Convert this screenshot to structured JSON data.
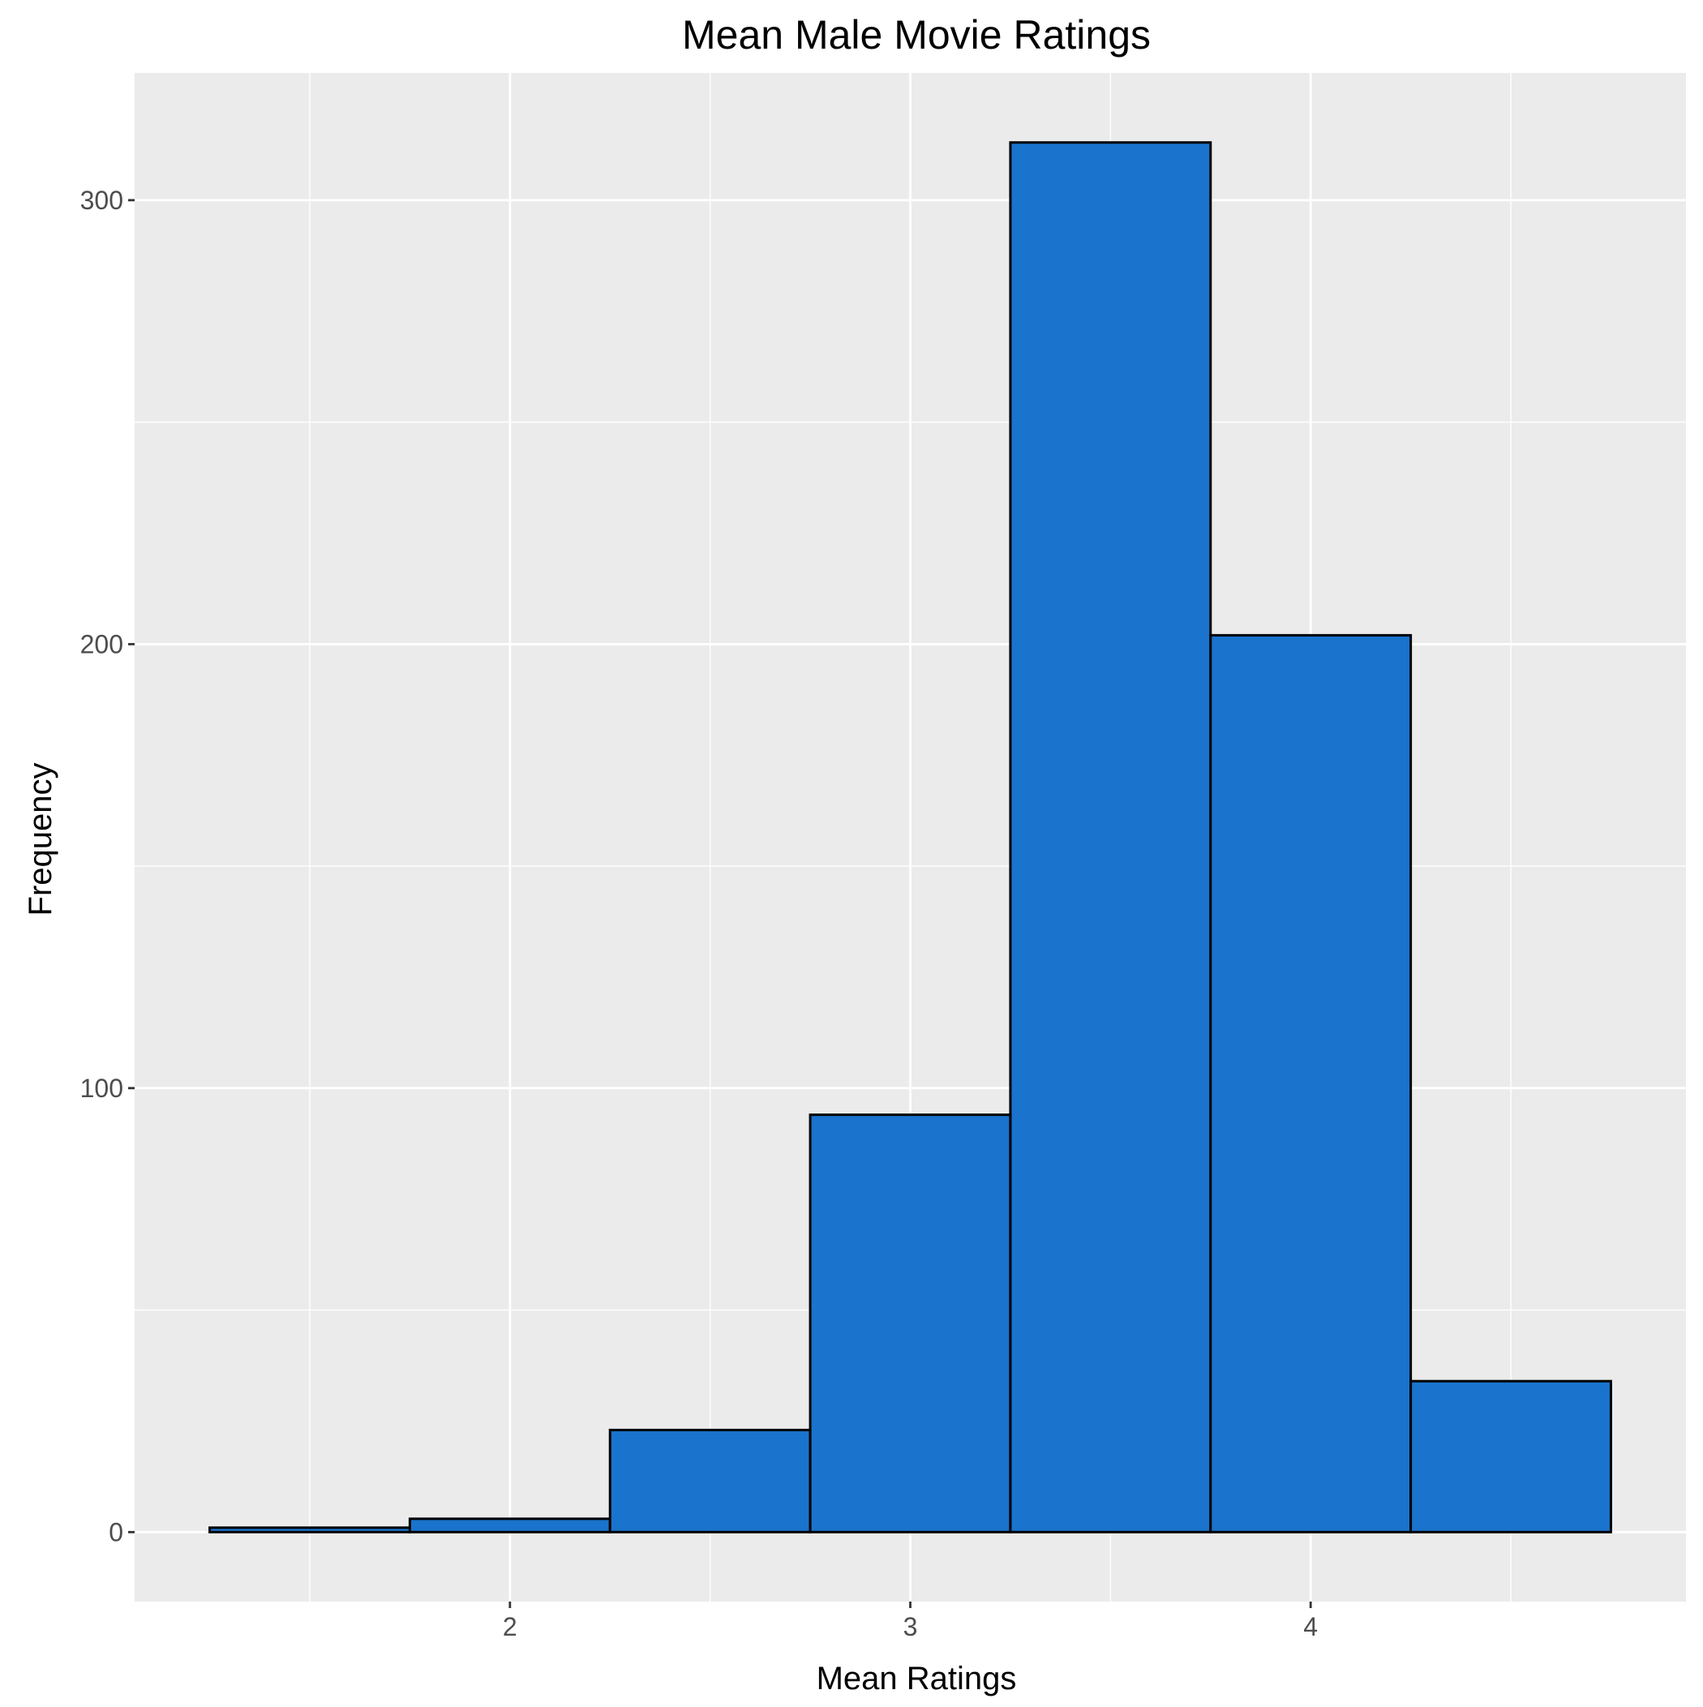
{
  "chart_data": {
    "type": "bar",
    "title": "Mean Male Movie Ratings",
    "xlabel": "Mean Ratings",
    "ylabel": "Frequency",
    "xlim": [
      1.0625,
      4.9375
    ],
    "ylim": [
      -15.65,
      328.65
    ],
    "x_ticks": [
      2,
      3,
      4
    ],
    "x_minor_ticks": [
      1.5,
      2.5,
      3.5,
      4.5
    ],
    "y_ticks": [
      0,
      100,
      200,
      300
    ],
    "y_minor_ticks": [
      50,
      150,
      250
    ],
    "bin_width": 0.5,
    "bins": [
      {
        "start": 1.25,
        "end": 1.75,
        "count": 1
      },
      {
        "start": 1.75,
        "end": 2.25,
        "count": 3
      },
      {
        "start": 2.25,
        "end": 2.75,
        "count": 23
      },
      {
        "start": 2.75,
        "end": 3.25,
        "count": 94
      },
      {
        "start": 3.25,
        "end": 3.75,
        "count": 313
      },
      {
        "start": 3.75,
        "end": 4.25,
        "count": 202
      },
      {
        "start": 4.25,
        "end": 4.75,
        "count": 34
      }
    ],
    "grid": true,
    "legend": "none",
    "colors": {
      "bar_fill": "#1a73cc",
      "bar_outline": "#000000",
      "panel_background": "#ebebeb",
      "grid": "#ffffff"
    }
  }
}
